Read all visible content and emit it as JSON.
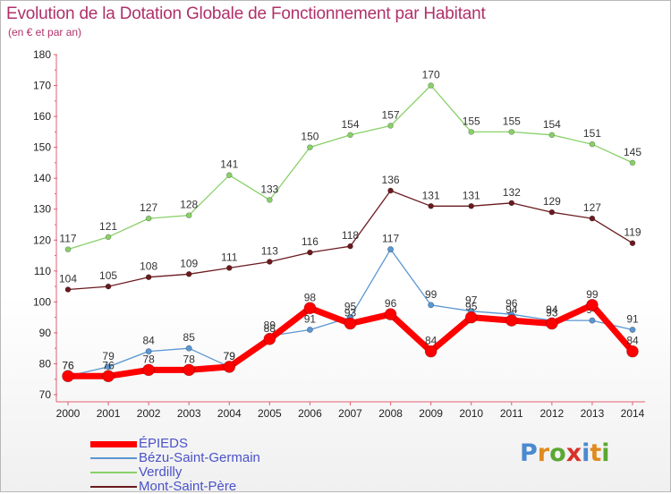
{
  "header": {
    "title": "Evolution de la Dotation Globale de Fonctionnement par Habitant",
    "subtitle": "(en € et par an)"
  },
  "logo": {
    "text": "Proxiti",
    "colors": [
      "#4a8ad0",
      "#e08a20",
      "#5aa832",
      "#d8302a",
      "#4a8ad0",
      "#e08a20",
      "#5aa832"
    ]
  },
  "chart_data": {
    "type": "line",
    "title": "Evolution de la Dotation Globale de Fonctionnement par Habitant",
    "subtitle": "(en € et par an)",
    "x": [
      2000,
      2001,
      2002,
      2003,
      2004,
      2005,
      2006,
      2007,
      2008,
      2009,
      2010,
      2011,
      2012,
      2013,
      2014
    ],
    "ylim": [
      70,
      180
    ],
    "yticks": [
      70,
      80,
      90,
      100,
      110,
      120,
      130,
      140,
      150,
      160,
      170,
      180
    ],
    "grid": false,
    "legend_position": "bottom-left",
    "series": [
      {
        "name": "Mont-Saint-Père",
        "color": "#6a1a1e",
        "values": [
          104,
          105,
          108,
          109,
          111,
          113,
          116,
          118,
          136,
          131,
          131,
          132,
          129,
          127,
          119
        ]
      },
      {
        "name": "Verdilly",
        "color": "#88d068",
        "values": [
          117,
          121,
          127,
          128,
          141,
          133,
          150,
          154,
          157,
          170,
          155,
          155,
          154,
          151,
          145
        ]
      },
      {
        "name": "Bézu-Saint-Germain",
        "color": "#5a96d2",
        "values": [
          76,
          79,
          84,
          85,
          79,
          89,
          91,
          95,
          117,
          99,
          97,
          96,
          94,
          94,
          91
        ]
      },
      {
        "name": "ÉPIEDS",
        "color": "#ff0000",
        "values": [
          76,
          76,
          78,
          78,
          79,
          88,
          98,
          93,
          96,
          84,
          95,
          94,
          93,
          99,
          84
        ]
      }
    ],
    "legend_order": [
      "ÉPIEDS",
      "Bézu-Saint-Germain",
      "Verdilly",
      "Mont-Saint-Père"
    ]
  }
}
